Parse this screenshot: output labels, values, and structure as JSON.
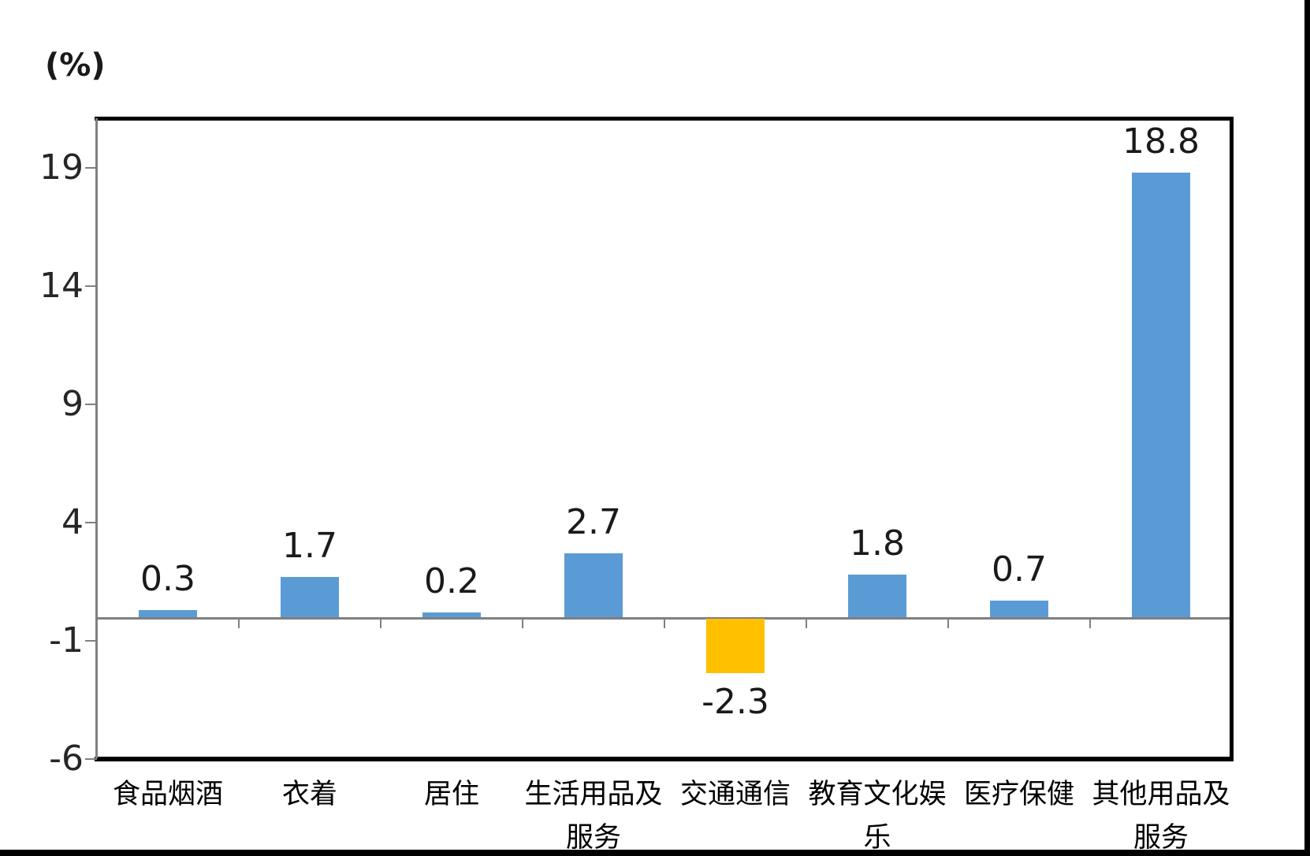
{
  "unit_label": "(%)",
  "colors": {
    "bar_default": "#5B9BD5",
    "bar_negative_highlight": "#FFC000",
    "axis_gray": "#808080",
    "border_black": "#000000",
    "text": "#1a1a1a"
  },
  "chart_data": {
    "type": "bar",
    "title": "",
    "ylabel": "(%)",
    "xlabel": "",
    "categories": [
      "食品烟酒",
      "衣着",
      "居住",
      "生活用品及服务",
      "交通通信",
      "教育文化娱乐",
      "医疗保健",
      "其他用品及服务"
    ],
    "values": [
      0.3,
      1.7,
      0.2,
      2.7,
      -2.3,
      1.8,
      0.7,
      18.8
    ],
    "data_labels": [
      "0.3",
      "1.7",
      "0.2",
      "2.7",
      "-2.3",
      "1.8",
      "0.7",
      "18.8"
    ],
    "bar_colors": [
      "#5B9BD5",
      "#5B9BD5",
      "#5B9BD5",
      "#5B9BD5",
      "#FFC000",
      "#5B9BD5",
      "#5B9BD5",
      "#5B9BD5"
    ],
    "y_ticks": [
      19,
      14,
      9,
      4,
      -1,
      -6
    ],
    "ylim": [
      -6,
      21
    ],
    "grid": false,
    "legend": "none"
  }
}
